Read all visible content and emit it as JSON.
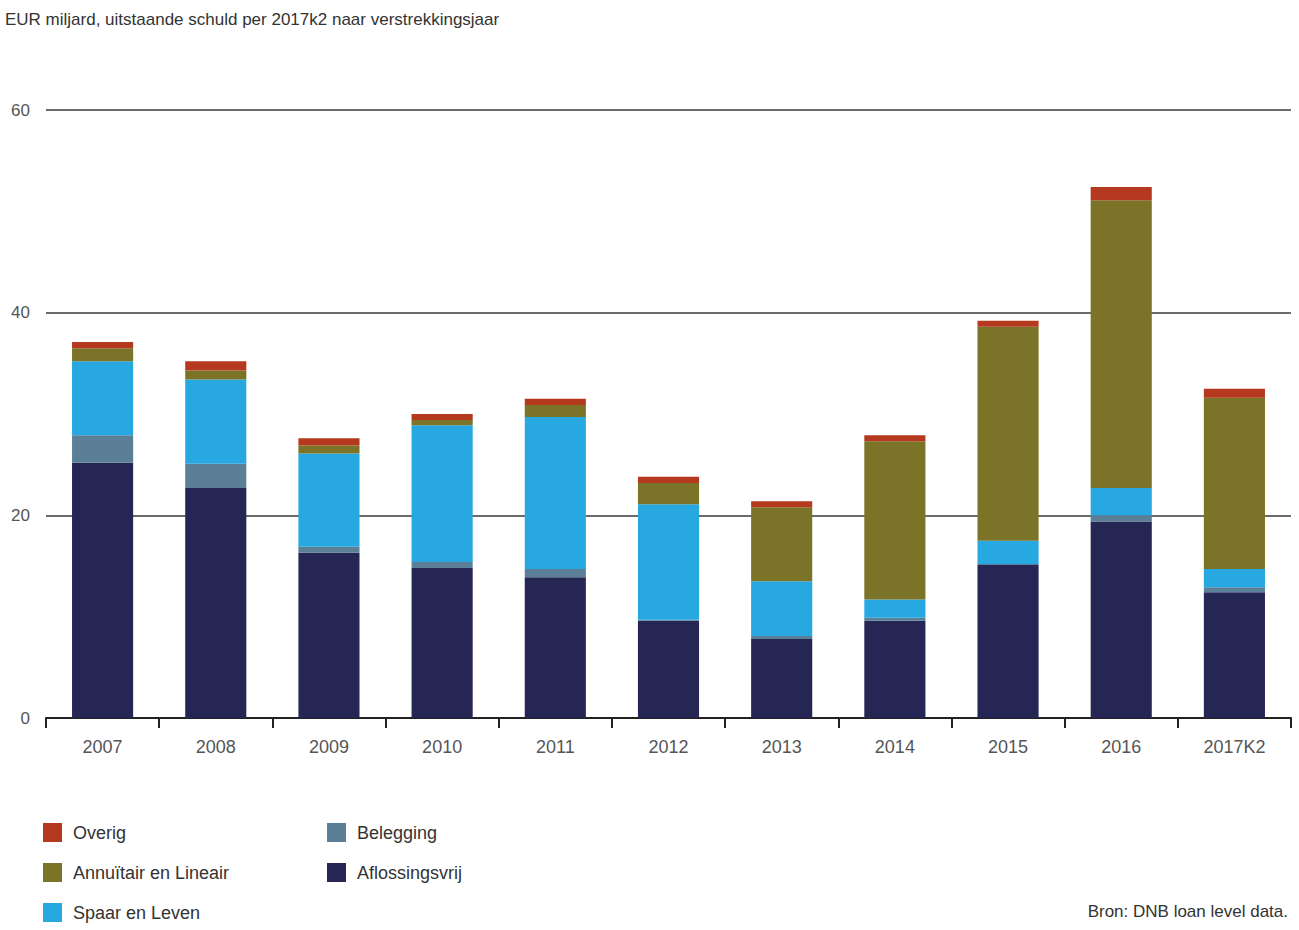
{
  "chart_data": {
    "type": "bar",
    "title": "EUR miljard, uitstaande schuld per 2017k2 naar verstrekkingsjaar",
    "source": "Bron: DNB loan level data.",
    "categories": [
      "2007",
      "2008",
      "2009",
      "2010",
      "2011",
      "2012",
      "2013",
      "2014",
      "2015",
      "2016",
      "2017K2"
    ],
    "series": [
      {
        "name": "Aflossingsvrij",
        "color": "#262654",
        "values": [
          25.2,
          22.7,
          16.3,
          14.8,
          13.9,
          9.6,
          7.8,
          9.6,
          15.1,
          19.4,
          12.4
        ]
      },
      {
        "name": "Belegging",
        "color": "#5a7f96",
        "values": [
          2.7,
          2.4,
          0.6,
          0.6,
          0.8,
          0.1,
          0.3,
          0.3,
          0.1,
          0.6,
          0.5
        ]
      },
      {
        "name": "Spaar en Leven",
        "color": "#27a8e0",
        "values": [
          7.3,
          8.3,
          9.2,
          13.5,
          15.0,
          11.4,
          5.4,
          1.8,
          2.3,
          2.7,
          1.8
        ]
      },
      {
        "name": "Annuïtair en Lineair",
        "color": "#7b7327",
        "values": [
          1.3,
          0.9,
          0.8,
          0.5,
          1.2,
          2.1,
          7.3,
          15.6,
          21.1,
          28.4,
          16.9
        ]
      },
      {
        "name": "Overig",
        "color": "#b5391e",
        "values": [
          0.6,
          0.9,
          0.7,
          0.6,
          0.6,
          0.6,
          0.6,
          0.6,
          0.6,
          1.3,
          0.9
        ]
      }
    ],
    "ylim": [
      0,
      60
    ],
    "yticks": [
      0,
      20,
      40,
      60
    ],
    "grid": true,
    "stacked": true,
    "legend": "bottom"
  }
}
